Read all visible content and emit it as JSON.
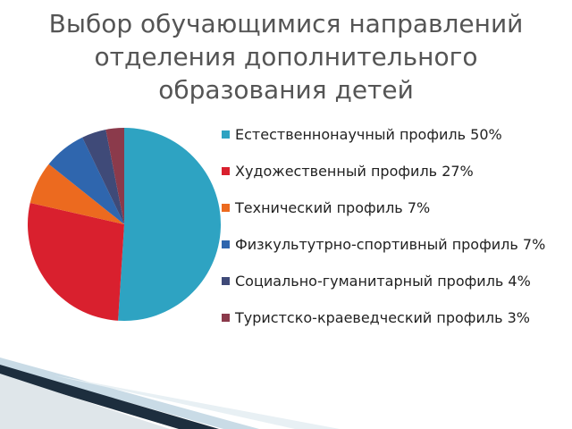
{
  "chart_data": {
    "type": "pie",
    "title": [
      "Выбор обучающимися направлений",
      "отделения дополнительного",
      "образования детей"
    ],
    "categories": [
      "Естественнонаучный профиль 50%",
      "Художественный профиль 27%",
      "Технический профиль 7%",
      "Физкультутрно-спортивный профиль 7%",
      "Социально-гуманитарный профиль 4%",
      "Туристско-краеведческий профиль 3%"
    ],
    "values": [
      50,
      27,
      7,
      7,
      4,
      3
    ],
    "colors": [
      "#2ea3c2",
      "#d9202e",
      "#ec6a1f",
      "#2f66ae",
      "#3f4a78",
      "#8b3a4b"
    ],
    "legend": "right"
  }
}
